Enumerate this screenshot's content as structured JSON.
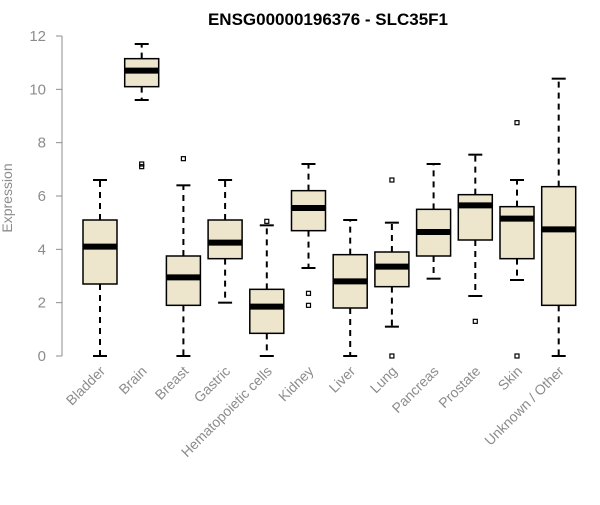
{
  "colors": {
    "box_fill": "#ede6cc",
    "stroke": "#000000",
    "axis": "#8c8c8c",
    "tick_text": "#8c8c8c"
  },
  "chart_data": {
    "type": "boxplot",
    "title": "ENSG00000196376 - SLC35F1",
    "xlabel": "",
    "ylabel": "Expression",
    "ylim": [
      0,
      12
    ],
    "yticks": [
      0,
      2,
      4,
      6,
      8,
      10,
      12
    ],
    "categories": [
      "Bladder",
      "Brain",
      "Breast",
      "Gastric",
      "Hematopoietic cells",
      "Kidney",
      "Liver",
      "Lung",
      "Pancreas",
      "Prostate",
      "Skin",
      "Unknown / Other"
    ],
    "series": [
      {
        "name": "Bladder",
        "min": 0.0,
        "q1": 2.7,
        "median": 4.1,
        "q3": 5.1,
        "max": 6.6,
        "outliers": []
      },
      {
        "name": "Brain",
        "min": 9.6,
        "q1": 10.1,
        "median": 10.7,
        "q3": 11.15,
        "max": 11.7,
        "outliers": [
          7.1,
          7.2
        ]
      },
      {
        "name": "Breast",
        "min": 0.0,
        "q1": 1.9,
        "median": 2.95,
        "q3": 3.75,
        "max": 6.4,
        "outliers": [
          7.4
        ]
      },
      {
        "name": "Gastric",
        "min": 2.0,
        "q1": 3.65,
        "median": 4.25,
        "q3": 5.1,
        "max": 6.6,
        "outliers": []
      },
      {
        "name": "Hematopoietic cells",
        "min": 0.0,
        "q1": 0.85,
        "median": 1.85,
        "q3": 2.5,
        "max": 4.9,
        "outliers": [
          5.05
        ]
      },
      {
        "name": "Kidney",
        "min": 3.3,
        "q1": 4.7,
        "median": 5.55,
        "q3": 6.2,
        "max": 7.2,
        "outliers": [
          2.35,
          1.9
        ]
      },
      {
        "name": "Liver",
        "min": 0.0,
        "q1": 1.8,
        "median": 2.8,
        "q3": 3.8,
        "max": 5.1,
        "outliers": []
      },
      {
        "name": "Lung",
        "min": 1.1,
        "q1": 2.6,
        "median": 3.35,
        "q3": 3.9,
        "max": 5.0,
        "outliers": [
          6.6,
          0.0
        ]
      },
      {
        "name": "Pancreas",
        "min": 2.9,
        "q1": 3.75,
        "median": 4.65,
        "q3": 5.5,
        "max": 7.2,
        "outliers": []
      },
      {
        "name": "Prostate",
        "min": 2.25,
        "q1": 4.35,
        "median": 5.65,
        "q3": 6.05,
        "max": 7.55,
        "outliers": [
          1.3
        ]
      },
      {
        "name": "Skin",
        "min": 2.85,
        "q1": 3.65,
        "median": 5.15,
        "q3": 5.6,
        "max": 6.6,
        "outliers": [
          8.75,
          0.0
        ]
      },
      {
        "name": "Unknown / Other",
        "min": 0.0,
        "q1": 1.9,
        "median": 4.75,
        "q3": 6.35,
        "max": 10.4,
        "outliers": []
      }
    ]
  }
}
